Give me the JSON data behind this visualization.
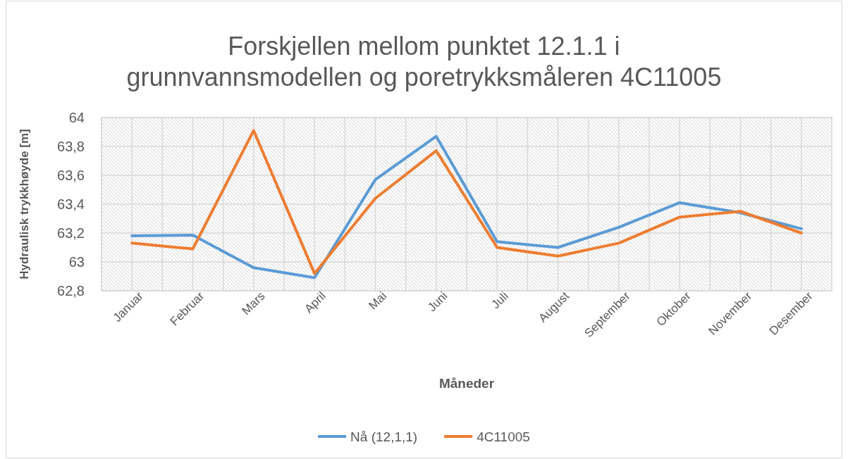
{
  "chart_data": {
    "type": "line",
    "title": "Forskjellen mellom punktet 12.1.1 i grunnvannsmodellen og poretrykksmåleren 4C11005",
    "xlabel": "Måneder",
    "ylabel": "Hydraulisk trykkhøyde [m]",
    "categories": [
      "Januar",
      "Februar",
      "Mars",
      "April",
      "Mai",
      "Juni",
      "Juli",
      "August",
      "September",
      "Oktober",
      "November",
      "Desember"
    ],
    "series": [
      {
        "name": "Nå (12,1,1)",
        "color": "#5b9bd5",
        "values": [
          63.18,
          63.185,
          62.96,
          62.89,
          63.57,
          63.87,
          63.14,
          63.1,
          63.24,
          63.41,
          63.34,
          63.23
        ]
      },
      {
        "name": "4C11005",
        "color": "#ed7d31",
        "values": [
          63.13,
          63.09,
          63.91,
          62.92,
          63.44,
          63.77,
          63.1,
          63.04,
          63.13,
          63.31,
          63.35,
          63.2
        ]
      }
    ],
    "ylim": [
      62.8,
      64
    ],
    "yticks": [
      {
        "value": 62.8,
        "label": "62,8"
      },
      63,
      {
        "value": 63.2,
        "label": "63,2"
      },
      {
        "value": 63.4,
        "label": "63,4"
      },
      {
        "value": 63.6,
        "label": "63,6"
      },
      {
        "value": 63.8,
        "label": "63,8"
      },
      64
    ],
    "grid": true,
    "legend": "bottom"
  }
}
